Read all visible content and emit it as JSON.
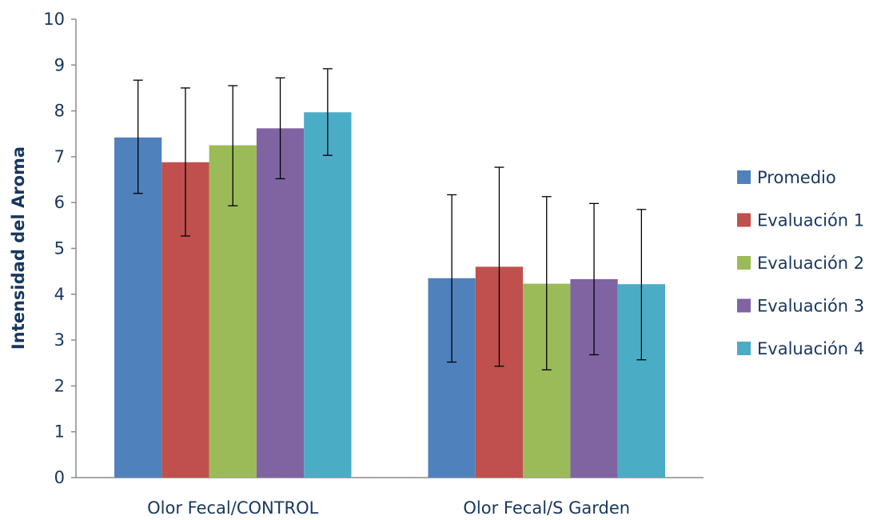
{
  "chart_data": {
    "type": "bar",
    "ylabel": "Intensidad del Aroma",
    "xlabel": "",
    "ylim": [
      0,
      10
    ],
    "yticks": [
      0,
      1,
      2,
      3,
      4,
      5,
      6,
      7,
      8,
      9,
      10
    ],
    "categories": [
      "Olor Fecal/CONTROL",
      "Olor Fecal/S Garden"
    ],
    "series": [
      {
        "name": "Promedio",
        "color": "#4f81bd",
        "values": [
          7.42,
          4.35
        ],
        "error_low": [
          6.2,
          2.52
        ],
        "error_high": [
          8.67,
          6.17
        ]
      },
      {
        "name": "Evaluación 1",
        "color": "#c0504d",
        "values": [
          6.88,
          4.6
        ],
        "error_low": [
          5.27,
          2.43
        ],
        "error_high": [
          8.5,
          6.77
        ]
      },
      {
        "name": "Evaluación 2",
        "color": "#9bbb59",
        "values": [
          7.25,
          4.23
        ],
        "error_low": [
          5.93,
          2.35
        ],
        "error_high": [
          8.55,
          6.13
        ]
      },
      {
        "name": "Evaluación 3",
        "color": "#8064a2",
        "values": [
          7.62,
          4.33
        ],
        "error_low": [
          6.52,
          2.68
        ],
        "error_high": [
          8.72,
          5.98
        ]
      },
      {
        "name": "Evaluación 4",
        "color": "#4bacc6",
        "values": [
          7.97,
          4.22
        ],
        "error_low": [
          7.03,
          2.57
        ],
        "error_high": [
          8.92,
          5.85
        ]
      }
    ],
    "legend": "right",
    "grid": false
  }
}
